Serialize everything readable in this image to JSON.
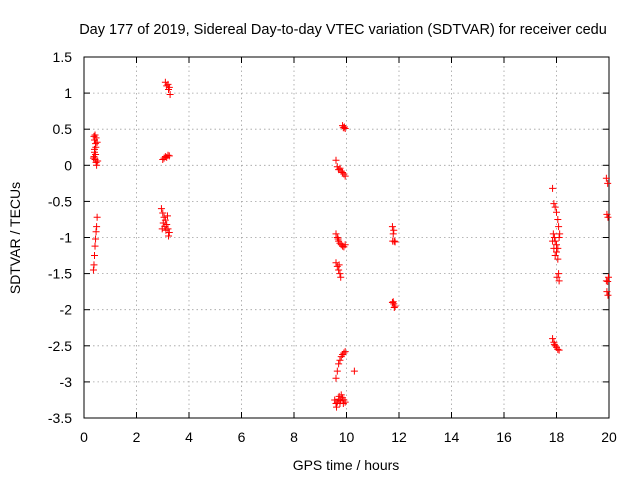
{
  "chart_data": {
    "type": "scatter",
    "title": "Day 177 of 2019, Sidereal Day-to-day VTEC variation (SDTVAR) for receiver cedu",
    "xlabel": "GPS time / hours",
    "ylabel": "SDTVAR / TECUs",
    "xlim": [
      0,
      20
    ],
    "ylim": [
      -3.5,
      1.5
    ],
    "xticks": [
      "0",
      "2",
      "4",
      "6",
      "8",
      "10",
      "12",
      "14",
      "16",
      "18",
      "20"
    ],
    "yticks": [
      "1.5",
      "1",
      "0.5",
      "0",
      "-0.5",
      "-1",
      "-1.5",
      "-2",
      "-2.5",
      "-3",
      "-3.5"
    ],
    "grid": true,
    "marker": "+",
    "color": "#ff0000",
    "series": [
      {
        "name": "SDTVAR",
        "points": [
          [
            0.38,
            0.4
          ],
          [
            0.4,
            0.35
          ],
          [
            0.42,
            0.42
          ],
          [
            0.44,
            0.3
          ],
          [
            0.46,
            0.38
          ],
          [
            0.4,
            0.22
          ],
          [
            0.44,
            0.15
          ],
          [
            0.38,
            0.12
          ],
          [
            0.42,
            0.08
          ],
          [
            0.46,
            0.04
          ],
          [
            0.48,
            0.0
          ],
          [
            0.4,
            0.18
          ],
          [
            0.45,
            0.25
          ],
          [
            0.5,
            0.32
          ],
          [
            0.36,
            0.1
          ],
          [
            0.52,
            0.06
          ],
          [
            0.36,
            -1.45
          ],
          [
            0.38,
            -1.38
          ],
          [
            0.4,
            -1.25
          ],
          [
            0.42,
            -1.12
          ],
          [
            0.44,
            -1.02
          ],
          [
            0.46,
            -0.92
          ],
          [
            0.48,
            -0.85
          ],
          [
            0.5,
            -0.72
          ],
          [
            2.95,
            -0.6
          ],
          [
            3.0,
            -0.66
          ],
          [
            3.05,
            -0.72
          ],
          [
            3.02,
            -0.8
          ],
          [
            3.1,
            -0.76
          ],
          [
            3.08,
            -0.85
          ],
          [
            3.15,
            -0.82
          ],
          [
            3.12,
            -0.9
          ],
          [
            3.2,
            -0.88
          ],
          [
            3.25,
            -0.93
          ],
          [
            3.22,
            -0.98
          ],
          [
            2.98,
            -0.88
          ],
          [
            3.18,
            -0.7
          ],
          [
            3.0,
            0.08
          ],
          [
            3.05,
            0.1
          ],
          [
            3.1,
            0.12
          ],
          [
            3.15,
            0.11
          ],
          [
            3.2,
            0.14
          ],
          [
            3.25,
            0.13
          ],
          [
            3.1,
            1.15
          ],
          [
            3.15,
            1.1
          ],
          [
            3.2,
            1.12
          ],
          [
            3.22,
            1.05
          ],
          [
            3.28,
            0.98
          ],
          [
            3.25,
            1.08
          ],
          [
            9.6,
            0.07
          ],
          [
            9.65,
            -0.02
          ],
          [
            9.7,
            -0.06
          ],
          [
            9.75,
            -0.04
          ],
          [
            9.8,
            -0.08
          ],
          [
            9.85,
            -0.1
          ],
          [
            9.9,
            -0.12
          ],
          [
            9.95,
            -0.15
          ],
          [
            9.85,
            0.55
          ],
          [
            9.88,
            0.52
          ],
          [
            9.92,
            0.53
          ],
          [
            9.95,
            0.51
          ],
          [
            9.6,
            -0.95
          ],
          [
            9.65,
            -1.0
          ],
          [
            9.7,
            -1.05
          ],
          [
            9.75,
            -1.08
          ],
          [
            9.8,
            -1.1
          ],
          [
            9.85,
            -1.12
          ],
          [
            9.9,
            -1.13
          ],
          [
            9.95,
            -1.1
          ],
          [
            9.68,
            -1.02
          ],
          [
            9.6,
            -1.35
          ],
          [
            9.65,
            -1.4
          ],
          [
            9.7,
            -1.45
          ],
          [
            9.75,
            -1.5
          ],
          [
            9.78,
            -1.55
          ],
          [
            9.72,
            -1.38
          ],
          [
            9.6,
            -2.95
          ],
          [
            9.65,
            -2.85
          ],
          [
            9.7,
            -2.75
          ],
          [
            9.75,
            -2.7
          ],
          [
            9.8,
            -2.65
          ],
          [
            9.85,
            -2.62
          ],
          [
            9.9,
            -2.6
          ],
          [
            9.95,
            -2.58
          ],
          [
            9.55,
            -3.25
          ],
          [
            9.6,
            -3.3
          ],
          [
            9.62,
            -3.35
          ],
          [
            9.65,
            -3.28
          ],
          [
            9.7,
            -3.24
          ],
          [
            9.72,
            -3.2
          ],
          [
            9.75,
            -3.3
          ],
          [
            9.8,
            -3.18
          ],
          [
            9.85,
            -3.22
          ],
          [
            9.88,
            -3.3
          ],
          [
            9.9,
            -3.25
          ],
          [
            9.95,
            -3.28
          ],
          [
            9.78,
            -3.26
          ],
          [
            10.3,
            -2.85
          ],
          [
            11.75,
            -0.85
          ],
          [
            11.8,
            -0.9
          ],
          [
            11.78,
            -0.95
          ],
          [
            11.82,
            -1.05
          ],
          [
            11.85,
            -1.06
          ],
          [
            11.76,
            -1.05
          ],
          [
            11.75,
            -1.9
          ],
          [
            11.8,
            -1.92
          ],
          [
            11.85,
            -1.95
          ],
          [
            11.78,
            -1.89
          ],
          [
            11.82,
            -1.97
          ],
          [
            17.85,
            -0.32
          ],
          [
            17.9,
            -0.53
          ],
          [
            17.95,
            -0.58
          ],
          [
            18.0,
            -0.65
          ],
          [
            18.05,
            -0.75
          ],
          [
            17.88,
            -0.95
          ],
          [
            17.92,
            -1.0
          ],
          [
            17.95,
            -1.05
          ],
          [
            18.0,
            -1.1
          ],
          [
            18.05,
            -1.15
          ],
          [
            18.1,
            -1.0
          ],
          [
            17.85,
            -1.05
          ],
          [
            17.9,
            -1.15
          ],
          [
            17.95,
            -1.25
          ],
          [
            18.0,
            -1.2
          ],
          [
            18.08,
            -0.85
          ],
          [
            18.12,
            -0.95
          ],
          [
            18.05,
            -1.3
          ],
          [
            18.08,
            -1.5
          ],
          [
            18.1,
            -1.6
          ],
          [
            18.02,
            -1.55
          ],
          [
            17.85,
            -2.4
          ],
          [
            17.9,
            -2.45
          ],
          [
            17.95,
            -2.5
          ],
          [
            18.0,
            -2.52
          ],
          [
            18.05,
            -2.55
          ],
          [
            18.1,
            -2.56
          ],
          [
            17.92,
            -2.48
          ],
          [
            19.9,
            -0.18
          ],
          [
            19.95,
            -0.25
          ],
          [
            19.92,
            -0.68
          ],
          [
            19.96,
            -0.72
          ],
          [
            19.9,
            -1.6
          ],
          [
            19.95,
            -1.61
          ],
          [
            19.98,
            -1.55
          ],
          [
            19.92,
            -1.75
          ],
          [
            19.96,
            -1.8
          ]
        ]
      }
    ]
  }
}
